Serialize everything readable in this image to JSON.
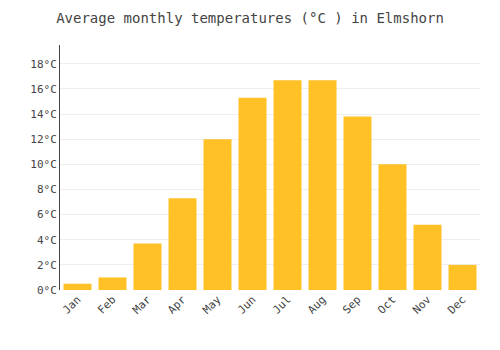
{
  "chart_data": {
    "type": "bar",
    "title": "Average monthly temperatures (°C ) in Elmshorn",
    "categories": [
      "Jan",
      "Feb",
      "Mar",
      "Apr",
      "May",
      "Jun",
      "Jul",
      "Aug",
      "Sep",
      "Oct",
      "Nov",
      "Dec"
    ],
    "values": [
      0.5,
      1.0,
      3.7,
      7.3,
      12.0,
      15.3,
      16.7,
      16.7,
      13.8,
      10.0,
      5.2,
      2.0
    ],
    "color": "#FFC125",
    "ylim": [
      0,
      19.5
    ],
    "yticks": [
      {
        "value": 0,
        "label": "0°C"
      },
      {
        "value": 2,
        "label": "2°C"
      },
      {
        "value": 4,
        "label": "4°C"
      },
      {
        "value": 6,
        "label": "6°C"
      },
      {
        "value": 8,
        "label": "8°C"
      },
      {
        "value": 10,
        "label": "10°C"
      },
      {
        "value": 12,
        "label": "12°C"
      },
      {
        "value": 14,
        "label": "14°C"
      },
      {
        "value": 16,
        "label": "16°C"
      },
      {
        "value": 18,
        "label": "18°C"
      }
    ],
    "grid": true
  }
}
